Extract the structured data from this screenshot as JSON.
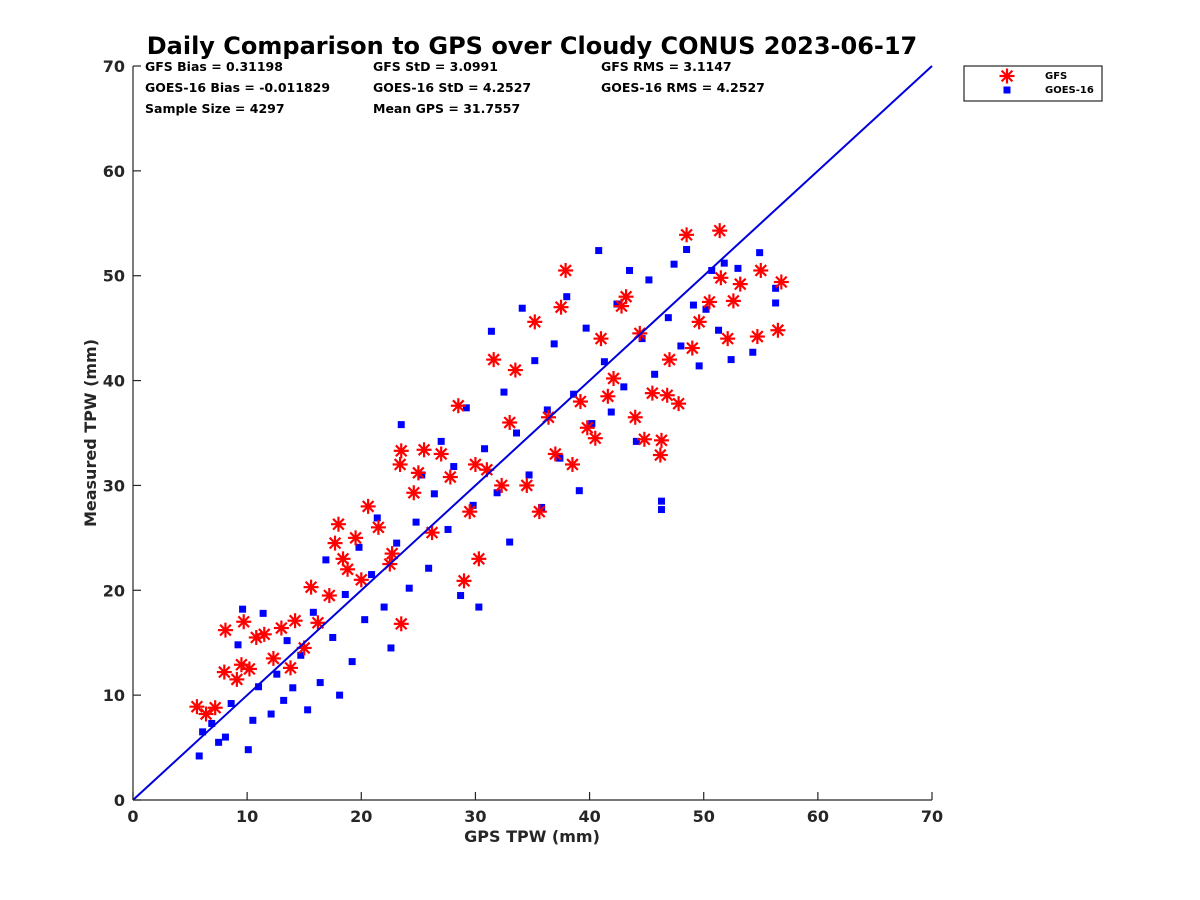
{
  "chart_data": {
    "type": "scatter",
    "title": "Daily Comparison to GPS over Cloudy CONUS 2023-06-17",
    "xlabel": "GPS TPW (mm)",
    "ylabel": "Measured TPW (mm)",
    "xlim": [
      0,
      70
    ],
    "ylim": [
      0,
      70
    ],
    "xticks": [
      "0",
      "10",
      "20",
      "30",
      "40",
      "50",
      "60",
      "70"
    ],
    "yticks": [
      "0",
      "10",
      "20",
      "30",
      "40",
      "50",
      "60",
      "70"
    ],
    "grid": false,
    "legend_position": "outside top-right",
    "reference_line": {
      "from": [
        0,
        0
      ],
      "to": [
        70,
        70
      ],
      "color": "#0000dd"
    },
    "stats": [
      [
        "GFS Bias = 0.31198",
        "GFS StD = 3.0991",
        "GFS RMS = 3.1147"
      ],
      [
        "GOES-16 Bias = -0.011829",
        "GOES-16 StD = 4.2527",
        "GOES-16 RMS = 4.2527"
      ],
      [
        "Sample Size = 4297",
        "Mean GPS = 31.7557",
        ""
      ]
    ],
    "series": [
      {
        "name": "GFS",
        "marker": "asterisk",
        "color": "#ff0000",
        "points": [
          [
            5.6,
            8.9
          ],
          [
            6.4,
            8.2
          ],
          [
            7.2,
            8.8
          ],
          [
            8.0,
            12.2
          ],
          [
            8.1,
            16.2
          ],
          [
            9.1,
            11.5
          ],
          [
            9.5,
            12.9
          ],
          [
            9.7,
            17.0
          ],
          [
            10.2,
            12.5
          ],
          [
            10.8,
            15.5
          ],
          [
            11.5,
            15.8
          ],
          [
            12.3,
            13.5
          ],
          [
            13.0,
            16.4
          ],
          [
            13.8,
            12.6
          ],
          [
            14.2,
            17.1
          ],
          [
            15.0,
            14.5
          ],
          [
            15.6,
            20.3
          ],
          [
            16.2,
            16.9
          ],
          [
            17.2,
            19.5
          ],
          [
            17.7,
            24.5
          ],
          [
            18.0,
            26.3
          ],
          [
            18.4,
            23.0
          ],
          [
            18.8,
            22.0
          ],
          [
            19.5,
            25.0
          ],
          [
            20.0,
            21.0
          ],
          [
            20.6,
            28.0
          ],
          [
            21.5,
            26.0
          ],
          [
            22.5,
            22.5
          ],
          [
            22.7,
            23.5
          ],
          [
            23.5,
            16.8
          ],
          [
            23.4,
            32.0
          ],
          [
            23.5,
            33.3
          ],
          [
            24.6,
            29.3
          ],
          [
            25.0,
            31.2
          ],
          [
            25.5,
            33.4
          ],
          [
            26.2,
            25.5
          ],
          [
            27.0,
            33.0
          ],
          [
            27.8,
            30.8
          ],
          [
            28.5,
            37.6
          ],
          [
            29.0,
            20.9
          ],
          [
            29.5,
            27.5
          ],
          [
            30.0,
            32.0
          ],
          [
            30.3,
            23.0
          ],
          [
            31.0,
            31.5
          ],
          [
            31.6,
            42.0
          ],
          [
            32.3,
            30.0
          ],
          [
            33.0,
            36.0
          ],
          [
            33.5,
            41.0
          ],
          [
            34.5,
            30.0
          ],
          [
            35.2,
            45.6
          ],
          [
            35.6,
            27.5
          ],
          [
            36.4,
            36.5
          ],
          [
            37.0,
            33.0
          ],
          [
            37.5,
            47.0
          ],
          [
            37.9,
            50.5
          ],
          [
            38.5,
            32.0
          ],
          [
            39.2,
            38.0
          ],
          [
            39.8,
            35.5
          ],
          [
            40.5,
            34.5
          ],
          [
            41.0,
            44.0
          ],
          [
            41.6,
            38.5
          ],
          [
            42.1,
            40.2
          ],
          [
            42.8,
            47.1
          ],
          [
            43.2,
            48.0
          ],
          [
            44.0,
            36.5
          ],
          [
            44.4,
            44.5
          ],
          [
            44.8,
            34.4
          ],
          [
            45.5,
            38.8
          ],
          [
            46.2,
            32.9
          ],
          [
            46.3,
            34.3
          ],
          [
            46.8,
            38.6
          ],
          [
            47.0,
            42.0
          ],
          [
            47.8,
            37.8
          ],
          [
            48.5,
            53.9
          ],
          [
            49.0,
            43.1
          ],
          [
            49.6,
            45.6
          ],
          [
            50.5,
            47.5
          ],
          [
            51.4,
            54.3
          ],
          [
            51.5,
            49.8
          ],
          [
            52.1,
            44.0
          ],
          [
            52.6,
            47.6
          ],
          [
            53.2,
            49.2
          ],
          [
            54.7,
            44.2
          ],
          [
            55.0,
            50.5
          ],
          [
            56.5,
            44.8
          ],
          [
            56.8,
            49.4
          ]
        ]
      },
      {
        "name": "GOES-16",
        "marker": "square",
        "color": "#0000ff",
        "points": [
          [
            5.8,
            4.2
          ],
          [
            6.1,
            6.5
          ],
          [
            6.9,
            7.3
          ],
          [
            7.5,
            5.5
          ],
          [
            8.1,
            6.0
          ],
          [
            8.6,
            9.2
          ],
          [
            9.2,
            14.8
          ],
          [
            9.6,
            18.2
          ],
          [
            10.1,
            4.8
          ],
          [
            10.5,
            7.6
          ],
          [
            11.0,
            10.8
          ],
          [
            11.4,
            17.8
          ],
          [
            12.1,
            8.2
          ],
          [
            12.6,
            12.0
          ],
          [
            13.2,
            9.5
          ],
          [
            13.5,
            15.2
          ],
          [
            14.0,
            10.7
          ],
          [
            14.7,
            13.8
          ],
          [
            15.3,
            8.6
          ],
          [
            15.8,
            17.9
          ],
          [
            16.4,
            11.2
          ],
          [
            16.9,
            22.9
          ],
          [
            17.5,
            15.5
          ],
          [
            18.1,
            10.0
          ],
          [
            18.6,
            19.6
          ],
          [
            19.2,
            13.2
          ],
          [
            19.8,
            24.1
          ],
          [
            20.3,
            17.2
          ],
          [
            20.9,
            21.5
          ],
          [
            21.4,
            26.9
          ],
          [
            22.0,
            18.4
          ],
          [
            22.6,
            14.5
          ],
          [
            23.1,
            24.5
          ],
          [
            23.5,
            35.8
          ],
          [
            24.2,
            20.2
          ],
          [
            24.8,
            26.5
          ],
          [
            25.3,
            31.0
          ],
          [
            25.9,
            22.1
          ],
          [
            26.4,
            29.2
          ],
          [
            27.0,
            34.2
          ],
          [
            27.6,
            25.8
          ],
          [
            28.1,
            31.8
          ],
          [
            28.7,
            19.5
          ],
          [
            29.2,
            37.4
          ],
          [
            29.8,
            28.1
          ],
          [
            30.3,
            18.4
          ],
          [
            30.8,
            33.5
          ],
          [
            31.4,
            44.7
          ],
          [
            31.9,
            29.3
          ],
          [
            32.5,
            38.9
          ],
          [
            33.0,
            24.6
          ],
          [
            33.6,
            35.0
          ],
          [
            34.1,
            46.9
          ],
          [
            34.7,
            31.0
          ],
          [
            35.2,
            41.9
          ],
          [
            35.8,
            27.9
          ],
          [
            36.3,
            37.2
          ],
          [
            36.9,
            43.5
          ],
          [
            37.4,
            32.6
          ],
          [
            38.0,
            48.0
          ],
          [
            38.6,
            38.7
          ],
          [
            39.1,
            29.5
          ],
          [
            39.7,
            45.0
          ],
          [
            40.2,
            35.9
          ],
          [
            40.8,
            52.4
          ],
          [
            41.3,
            41.8
          ],
          [
            41.9,
            37.0
          ],
          [
            42.4,
            47.3
          ],
          [
            43.0,
            39.4
          ],
          [
            43.5,
            50.5
          ],
          [
            44.1,
            34.2
          ],
          [
            44.6,
            44.0
          ],
          [
            45.2,
            49.6
          ],
          [
            45.7,
            40.6
          ],
          [
            46.3,
            27.7
          ],
          [
            46.3,
            28.5
          ],
          [
            46.9,
            46.0
          ],
          [
            47.4,
            51.1
          ],
          [
            48.0,
            43.3
          ],
          [
            48.5,
            52.5
          ],
          [
            49.1,
            47.2
          ],
          [
            49.6,
            41.4
          ],
          [
            50.2,
            46.8
          ],
          [
            50.7,
            50.5
          ],
          [
            51.3,
            44.8
          ],
          [
            51.8,
            51.2
          ],
          [
            52.4,
            42.0
          ],
          [
            53.0,
            50.7
          ],
          [
            54.3,
            42.7
          ],
          [
            54.9,
            52.2
          ],
          [
            56.3,
            48.8
          ],
          [
            56.3,
            47.4
          ]
        ]
      }
    ]
  }
}
